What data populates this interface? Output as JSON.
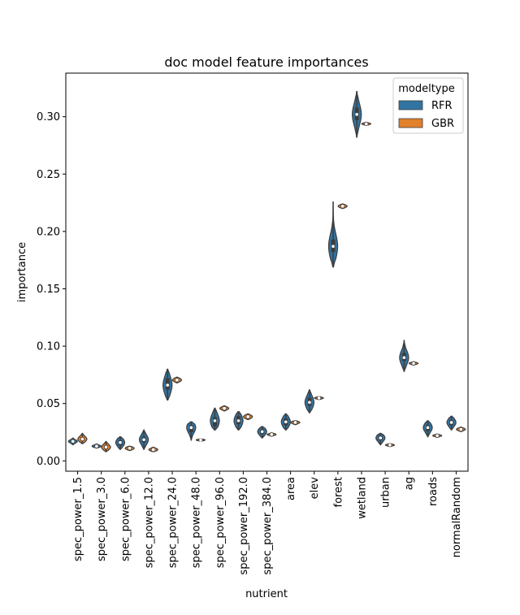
{
  "chart_data": {
    "type": "violin",
    "title": "doc model feature importances",
    "xlabel": "nutrient",
    "ylabel": "importance",
    "ylim": [
      -0.009,
      0.338
    ],
    "yticks": [
      0.0,
      0.05,
      0.1,
      0.15,
      0.2,
      0.25,
      0.3
    ],
    "ytick_labels": [
      "0.00",
      "0.05",
      "0.10",
      "0.15",
      "0.20",
      "0.25",
      "0.30"
    ],
    "categories": [
      "spec_power_1.5",
      "spec_power_3.0",
      "spec_power_6.0",
      "spec_power_12.0",
      "spec_power_24.0",
      "spec_power_48.0",
      "spec_power_96.0",
      "spec_power_192.0",
      "spec_power_384.0",
      "area",
      "elev",
      "forest",
      "wetland",
      "urban",
      "ag",
      "roads",
      "normalRandom"
    ],
    "legend": {
      "title": "modeltype",
      "placement": "top-right",
      "entries": [
        {
          "name": "RFR",
          "color": "#3274a1"
        },
        {
          "name": "GBR",
          "color": "#e1812c"
        }
      ]
    },
    "series": [
      {
        "name": "RFR",
        "color": "#3274a1",
        "distributions": [
          {
            "min": 0.014,
            "q1": 0.0162,
            "median": 0.017,
            "q3": 0.0178,
            "max": 0.02
          },
          {
            "min": 0.0112,
            "q1": 0.0122,
            "median": 0.0128,
            "q3": 0.0135,
            "max": 0.0148
          },
          {
            "min": 0.01,
            "q1": 0.0135,
            "median": 0.016,
            "q3": 0.018,
            "max": 0.021
          },
          {
            "min": 0.01,
            "q1": 0.016,
            "median": 0.0185,
            "q3": 0.021,
            "max": 0.027
          },
          {
            "min": 0.053,
            "q1": 0.062,
            "median": 0.066,
            "q3": 0.072,
            "max": 0.08
          },
          {
            "min": 0.018,
            "q1": 0.025,
            "median": 0.029,
            "q3": 0.031,
            "max": 0.034
          },
          {
            "min": 0.027,
            "q1": 0.03,
            "median": 0.035,
            "q3": 0.038,
            "max": 0.046
          },
          {
            "min": 0.027,
            "q1": 0.032,
            "median": 0.035,
            "q3": 0.039,
            "max": 0.043
          },
          {
            "min": 0.02,
            "q1": 0.0235,
            "median": 0.0255,
            "q3": 0.0275,
            "max": 0.03
          },
          {
            "min": 0.027,
            "q1": 0.031,
            "median": 0.034,
            "q3": 0.037,
            "max": 0.041
          },
          {
            "min": 0.042,
            "q1": 0.048,
            "median": 0.051,
            "q3": 0.055,
            "max": 0.062
          },
          {
            "min": 0.169,
            "q1": 0.182,
            "median": 0.187,
            "q3": 0.193,
            "max": 0.226
          },
          {
            "min": 0.282,
            "q1": 0.297,
            "median": 0.302,
            "q3": 0.308,
            "max": 0.322
          },
          {
            "min": 0.014,
            "q1": 0.018,
            "median": 0.02,
            "q3": 0.022,
            "max": 0.024
          },
          {
            "min": 0.078,
            "q1": 0.087,
            "median": 0.09,
            "q3": 0.094,
            "max": 0.105
          },
          {
            "min": 0.021,
            "q1": 0.026,
            "median": 0.029,
            "q3": 0.031,
            "max": 0.035
          },
          {
            "min": 0.027,
            "q1": 0.031,
            "median": 0.0335,
            "q3": 0.0355,
            "max": 0.039
          }
        ]
      },
      {
        "name": "GBR",
        "color": "#e1812c",
        "distributions": [
          {
            "min": 0.015,
            "q1": 0.0175,
            "median": 0.019,
            "q3": 0.0205,
            "max": 0.024
          },
          {
            "min": 0.008,
            "q1": 0.0105,
            "median": 0.012,
            "q3": 0.0135,
            "max": 0.017
          },
          {
            "min": 0.009,
            "q1": 0.0102,
            "median": 0.011,
            "q3": 0.0118,
            "max": 0.0128
          },
          {
            "min": 0.008,
            "q1": 0.009,
            "median": 0.0098,
            "q3": 0.0105,
            "max": 0.012
          },
          {
            "min": 0.068,
            "q1": 0.0695,
            "median": 0.0705,
            "q3": 0.0715,
            "max": 0.073
          },
          {
            "min": 0.0172,
            "q1": 0.0178,
            "median": 0.0182,
            "q3": 0.0186,
            "max": 0.0192
          },
          {
            "min": 0.0435,
            "q1": 0.045,
            "median": 0.0458,
            "q3": 0.0466,
            "max": 0.048
          },
          {
            "min": 0.036,
            "q1": 0.0375,
            "median": 0.0385,
            "q3": 0.0395,
            "max": 0.041
          },
          {
            "min": 0.0215,
            "q1": 0.0225,
            "median": 0.023,
            "q3": 0.0235,
            "max": 0.0245
          },
          {
            "min": 0.0315,
            "q1": 0.0328,
            "median": 0.0335,
            "q3": 0.0342,
            "max": 0.035
          },
          {
            "min": 0.0535,
            "q1": 0.0543,
            "median": 0.0548,
            "q3": 0.0553,
            "max": 0.056
          },
          {
            "min": 0.22,
            "q1": 0.2212,
            "median": 0.222,
            "q3": 0.2228,
            "max": 0.224
          },
          {
            "min": 0.2925,
            "q1": 0.2933,
            "median": 0.2938,
            "q3": 0.2943,
            "max": 0.2952
          },
          {
            "min": 0.0125,
            "q1": 0.0133,
            "median": 0.0138,
            "q3": 0.0143,
            "max": 0.015
          },
          {
            "min": 0.0835,
            "q1": 0.0845,
            "median": 0.085,
            "q3": 0.0855,
            "max": 0.0865
          },
          {
            "min": 0.0205,
            "q1": 0.0215,
            "median": 0.022,
            "q3": 0.0225,
            "max": 0.0235
          },
          {
            "min": 0.0255,
            "q1": 0.0268,
            "median": 0.0275,
            "q3": 0.0282,
            "max": 0.0295
          }
        ]
      }
    ],
    "grid": false
  }
}
